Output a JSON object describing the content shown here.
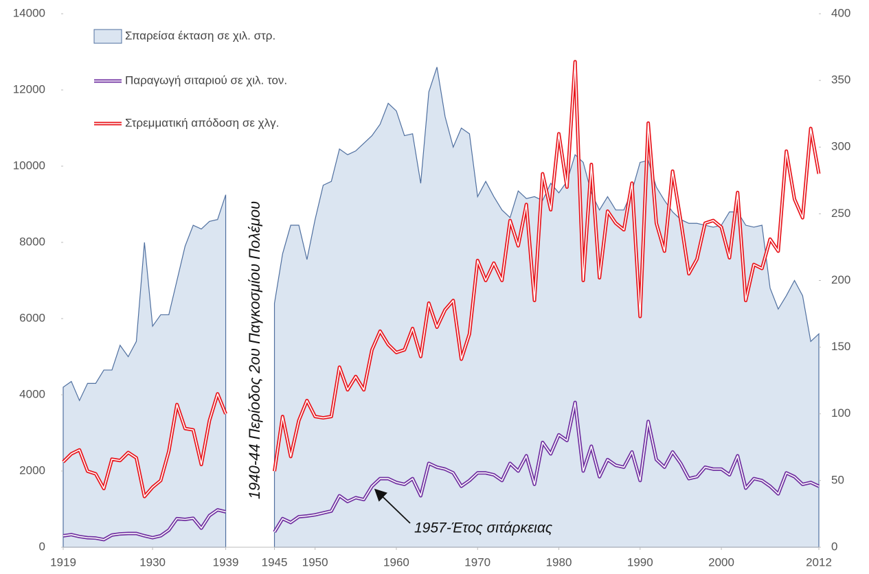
{
  "chart_data": {
    "type": "area-line",
    "x": [
      1919,
      1920,
      1921,
      1922,
      1923,
      1924,
      1925,
      1926,
      1927,
      1928,
      1929,
      1930,
      1931,
      1932,
      1933,
      1934,
      1935,
      1936,
      1937,
      1938,
      1939,
      1940,
      1941,
      1942,
      1943,
      1944,
      1945,
      1946,
      1947,
      1948,
      1949,
      1950,
      1951,
      1952,
      1953,
      1954,
      1955,
      1956,
      1957,
      1958,
      1959,
      1960,
      1961,
      1962,
      1963,
      1964,
      1965,
      1966,
      1967,
      1968,
      1969,
      1970,
      1971,
      1972,
      1973,
      1974,
      1975,
      1976,
      1977,
      1978,
      1979,
      1980,
      1981,
      1982,
      1983,
      1984,
      1985,
      1986,
      1987,
      1988,
      1989,
      1990,
      1991,
      1992,
      1993,
      1994,
      1995,
      1996,
      1997,
      1998,
      1999,
      2000,
      2001,
      2002,
      2003,
      2004,
      2005,
      2006,
      2007,
      2008,
      2009,
      2010,
      2011,
      2012
    ],
    "series": [
      {
        "name": "Σπαρείσα έκταση σε χιλ. στρ.",
        "kind": "area",
        "color": "#dbe5f1",
        "edge": "#4f6f9f",
        "values": [
          4200,
          4350,
          3850,
          4300,
          4300,
          4650,
          4650,
          5300,
          5000,
          5400,
          8000,
          5800,
          6100,
          6100,
          7000,
          7900,
          8450,
          8350,
          8550,
          8600,
          9250,
          null,
          null,
          null,
          null,
          null,
          6400,
          7700,
          8450,
          8450,
          7550,
          8600,
          9500,
          9600,
          10450,
          10300,
          10400,
          10600,
          10800,
          11100,
          11650,
          11450,
          10800,
          10850,
          9550,
          11950,
          12600,
          11300,
          10500,
          11000,
          10850,
          9200,
          9600,
          9200,
          8850,
          8650,
          9350,
          9150,
          9200,
          9100,
          9550,
          9300,
          9600,
          10300,
          10100,
          9300,
          8850,
          9200,
          8850,
          8850,
          9350,
          10100,
          10150,
          9450,
          9100,
          8800,
          8600,
          8500,
          8500,
          8450,
          8400,
          8450,
          8800,
          8800,
          8450,
          8400,
          8450,
          6800,
          6250,
          6600,
          7000,
          6600,
          5400,
          5600
        ]
      },
      {
        "name": "Παραγωγή σιταριού σε χιλ. τον.",
        "kind": "line",
        "color": "#7030a0",
        "values": [
          300,
          330,
          280,
          250,
          240,
          200,
          320,
          350,
          360,
          360,
          300,
          250,
          300,
          450,
          750,
          730,
          760,
          500,
          830,
          980,
          930,
          null,
          null,
          null,
          null,
          null,
          400,
          750,
          650,
          800,
          820,
          850,
          900,
          950,
          1350,
          1200,
          1300,
          1250,
          1600,
          1800,
          1800,
          1700,
          1650,
          1800,
          1350,
          2200,
          2100,
          2050,
          1950,
          1600,
          1750,
          1950,
          1950,
          1900,
          1750,
          2200,
          2000,
          2400,
          1650,
          2750,
          2450,
          2950,
          2800,
          3800,
          2000,
          2650,
          1850,
          2300,
          2150,
          2100,
          2500,
          1750,
          3300,
          2300,
          2100,
          2500,
          2200,
          1800,
          1850,
          2100,
          2050,
          2050,
          1900,
          2400,
          1550,
          1800,
          1750,
          1600,
          1400,
          1950,
          1850,
          1650,
          1700,
          1600
        ]
      },
      {
        "name": "Στρεμματική απόδοση σε χλγ.",
        "kind": "line",
        "axis": "y2",
        "color": "#e8141b",
        "values": [
          64,
          70,
          73,
          57,
          55,
          44,
          66,
          65,
          71,
          67,
          38,
          45,
          50,
          72,
          107,
          89,
          88,
          62,
          95,
          115,
          100,
          null,
          null,
          null,
          null,
          null,
          57,
          98,
          68,
          95,
          110,
          98,
          97,
          98,
          135,
          118,
          128,
          118,
          148,
          162,
          152,
          146,
          148,
          164,
          143,
          183,
          165,
          178,
          185,
          141,
          160,
          215,
          200,
          213,
          200,
          245,
          226,
          257,
          185,
          280,
          253,
          310,
          270,
          364,
          200,
          287,
          202,
          252,
          243,
          238,
          273,
          173,
          318,
          243,
          222,
          282,
          245,
          205,
          216,
          243,
          245,
          240,
          217,
          266,
          185,
          212,
          209,
          231,
          222,
          297,
          261,
          247,
          314,
          280
        ]
      }
    ],
    "xlim": [
      1919,
      2012
    ],
    "xticks": [
      1919,
      1930,
      1939,
      1945,
      1950,
      1960,
      1970,
      1980,
      1990,
      2000,
      2012
    ],
    "ylim": [
      0,
      14000
    ],
    "yticks": [
      0,
      2000,
      4000,
      6000,
      8000,
      10000,
      12000,
      14000
    ],
    "y2lim": [
      0,
      400
    ],
    "y2ticks": [
      0,
      50,
      100,
      150,
      200,
      250,
      300,
      350,
      400
    ],
    "annotations": [
      "1940-44 Περίοδος 2ου Παγκοσμίου Πολέμου",
      "1957-Έτος σιτάρκειας"
    ]
  }
}
